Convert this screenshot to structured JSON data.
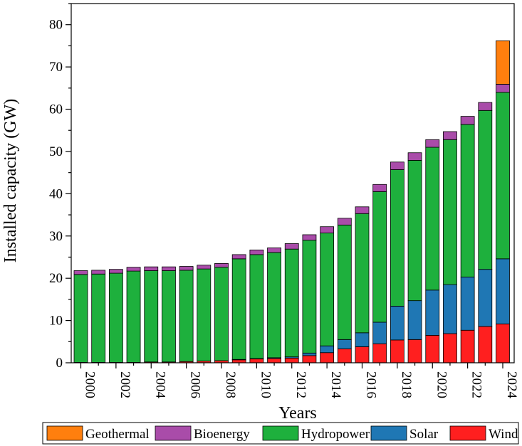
{
  "chart_data": {
    "type": "bar",
    "stacked": true,
    "title": "",
    "xlabel": "Years",
    "ylabel": "Installed capacity (GW)",
    "ylim": [
      0,
      85
    ],
    "yticks": [
      0,
      10,
      20,
      30,
      40,
      50,
      60,
      70,
      80
    ],
    "grid": false,
    "legend_position": "bottom",
    "categories": [
      "2000",
      "2001",
      "2002",
      "2003",
      "2004",
      "2005",
      "2006",
      "2007",
      "2008",
      "2009",
      "2010",
      "2011",
      "2012",
      "2013",
      "2014",
      "2015",
      "2016",
      "2017",
      "2018",
      "2019",
      "2020",
      "2021",
      "2022",
      "2023",
      "2024"
    ],
    "xtick_labels": [
      "2000",
      "",
      "2002",
      "",
      "2004",
      "",
      "2006",
      "",
      "2008",
      "",
      "2010",
      "",
      "2012",
      "",
      "2014",
      "",
      "2016",
      "",
      "2018",
      "",
      "2020",
      "",
      "2022",
      "",
      "2024"
    ],
    "series": [
      {
        "name": "Wind",
        "color": "#ff1f1f",
        "values": [
          0.1,
          0.1,
          0.1,
          0.1,
          0.2,
          0.2,
          0.3,
          0.4,
          0.5,
          0.7,
          0.9,
          1.0,
          1.1,
          1.7,
          2.4,
          3.3,
          3.8,
          4.5,
          5.4,
          5.5,
          6.5,
          6.9,
          7.7,
          8.6,
          9.2
        ]
      },
      {
        "name": "Solar",
        "color": "#1f77b4",
        "values": [
          0,
          0,
          0,
          0,
          0,
          0,
          0,
          0,
          0,
          0.1,
          0.1,
          0.2,
          0.3,
          0.6,
          1.6,
          2.2,
          3.3,
          5.1,
          8.0,
          9.2,
          10.7,
          11.6,
          12.6,
          13.5,
          15.4
        ]
      },
      {
        "name": "Hydropower",
        "color": "#1eb03d",
        "values": [
          20.8,
          20.9,
          21.1,
          21.6,
          21.6,
          21.6,
          21.6,
          21.8,
          22.1,
          23.8,
          24.6,
          24.9,
          25.5,
          26.7,
          26.7,
          27.1,
          28.2,
          30.9,
          32.3,
          33.2,
          33.8,
          34.3,
          36.1,
          37.6,
          39.4
        ]
      },
      {
        "name": "Bioenergy",
        "color": "#a94ca9",
        "values": [
          0.9,
          0.9,
          0.9,
          0.9,
          0.9,
          0.9,
          0.9,
          0.9,
          0.9,
          1.0,
          1.1,
          1.1,
          1.3,
          1.3,
          1.5,
          1.6,
          1.6,
          1.7,
          1.8,
          1.8,
          1.8,
          1.9,
          1.9,
          1.9,
          1.9
        ]
      },
      {
        "name": "Geothermal",
        "color": "#ff7f0e",
        "values": [
          0,
          0,
          0,
          0,
          0,
          0,
          0,
          0,
          0,
          0,
          0,
          0,
          0,
          0,
          0,
          0,
          0,
          0,
          0,
          0,
          0,
          0,
          0,
          0,
          10.3
        ]
      }
    ],
    "legend_order": [
      "Geothermal",
      "Bioenergy",
      "Hydropower",
      "Solar",
      "Wind"
    ]
  }
}
